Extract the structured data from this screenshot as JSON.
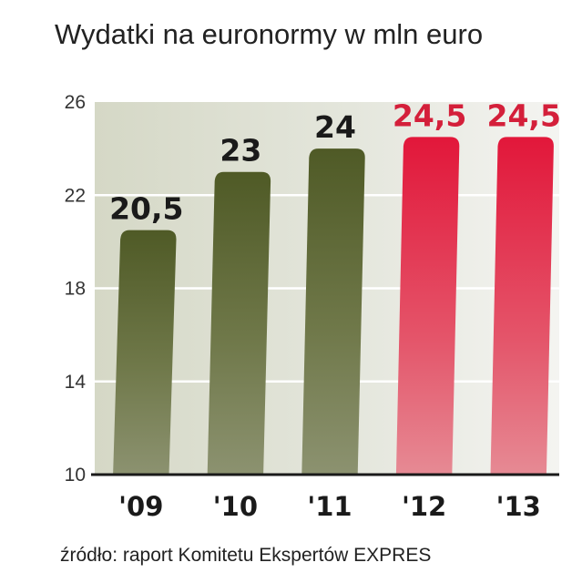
{
  "chart_data": {
    "type": "bar",
    "title": "Wydatki na euronormy w mln euro",
    "source": "źródło: raport Komitetu Ekspertów EXPRES",
    "categories": [
      "'09",
      "'10",
      "'11",
      "'12",
      "'13"
    ],
    "values": [
      20.5,
      23,
      24,
      24.5,
      24.5
    ],
    "value_labels": [
      "20,5",
      "23",
      "24",
      "24,5",
      "24,5"
    ],
    "yticks": [
      10,
      14,
      18,
      22,
      26
    ],
    "ylim": [
      10,
      26
    ],
    "grid": true,
    "colors": {
      "historic_bar": "#5a6431",
      "forecast_bar": "#e0203c",
      "historic_label": "#1a1a1a",
      "forecast_label": "#d41f3a",
      "plot_background": "#d9dccb"
    },
    "forecast_from_index": 3
  }
}
